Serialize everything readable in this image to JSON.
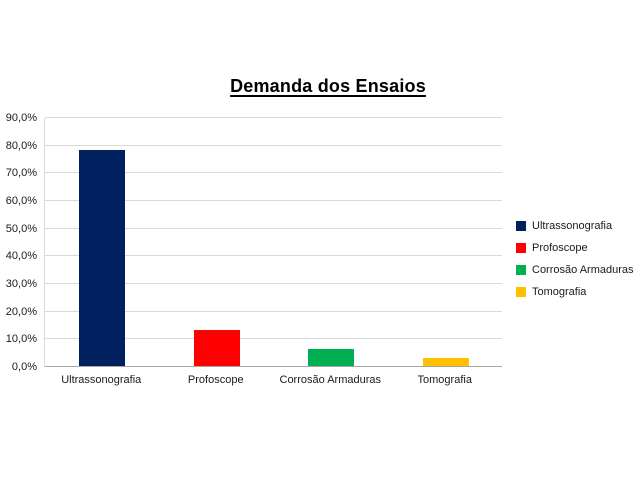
{
  "chart_data": {
    "type": "bar",
    "title": "Demanda dos Ensaios",
    "categories": [
      "Ultrassonografia",
      "Profoscope",
      "Corrosão Armaduras",
      "Tomografia"
    ],
    "values": [
      78,
      13,
      6,
      3
    ],
    "unit": "%",
    "xlabel": "",
    "ylabel": "",
    "ylim": [
      0,
      90
    ],
    "ytick_step": 10,
    "ytick_labels": [
      "0,0%",
      "10,0%",
      "20,0%",
      "30,0%",
      "40,0%",
      "50,0%",
      "60,0%",
      "70,0%",
      "80,0%",
      "90,0%"
    ],
    "grid": true,
    "legend_position": "right",
    "legend": [
      {
        "label": "Ultrassonografia",
        "color": "#002060"
      },
      {
        "label": "Profoscope",
        "color": "#ff0000"
      },
      {
        "label": "Corrosão Armaduras",
        "color": "#00b050"
      },
      {
        "label": "Tomografia",
        "color": "#ffc000"
      }
    ]
  },
  "colors": {
    "background": "#ffffff",
    "gridline": "#d9d9d9",
    "axis_line": "#a6a6a6",
    "title_text": "#000000",
    "label_text": "#1a1a1a"
  }
}
